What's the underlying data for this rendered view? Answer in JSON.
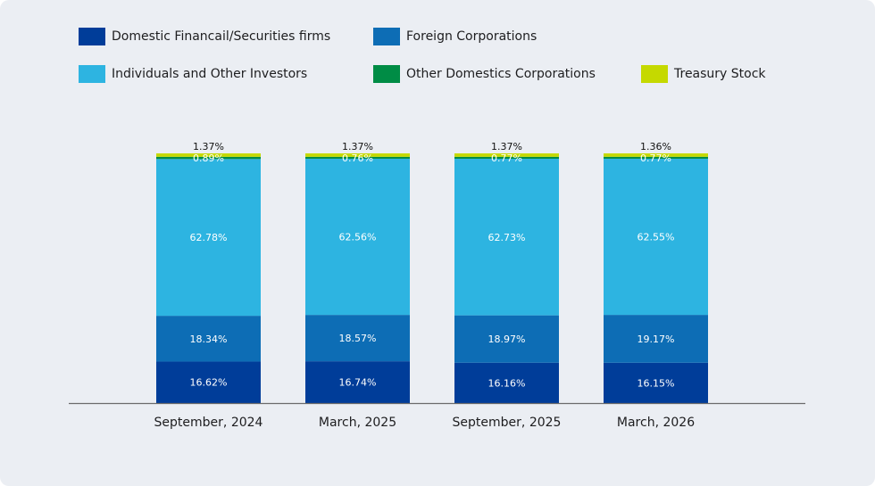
{
  "chart_data": {
    "type": "bar",
    "stacked": true,
    "percent": true,
    "categories": [
      "September, 2024",
      "March, 2025",
      "September, 2025",
      "March, 2026"
    ],
    "series": [
      {
        "name": "Domestic Financail/Securities firms",
        "color": "#003d99",
        "values": [
          16.62,
          16.74,
          16.16,
          16.15
        ],
        "labels": [
          "16.62%",
          "16.74%",
          "16.16%",
          "16.15%"
        ]
      },
      {
        "name": "Foreign Corporations",
        "color": "#0d6db5",
        "values": [
          18.34,
          18.57,
          18.97,
          19.17
        ],
        "labels": [
          "18.34%",
          "18.57%",
          "18.97%",
          "19.17%"
        ]
      },
      {
        "name": "Individuals and Other Investors",
        "color": "#2db4e1",
        "values": [
          62.78,
          62.56,
          62.73,
          62.55
        ],
        "labels": [
          "62.78%",
          "62.56%",
          "62.73%",
          "62.55%"
        ]
      },
      {
        "name": "Other Domestics Corporations",
        "color": "#008c45",
        "values": [
          0.89,
          0.76,
          0.77,
          0.77
        ],
        "labels": [
          "0.89%",
          "0.76%",
          "0.77%",
          "0.77%"
        ]
      },
      {
        "name": "Treasury Stock",
        "color": "#c5d900",
        "values": [
          1.37,
          1.37,
          1.37,
          1.36
        ],
        "labels": [
          "1.37%",
          "1.37%",
          "1.37%",
          "1.36%"
        ]
      }
    ],
    "ylim": [
      0,
      100
    ],
    "grid": false,
    "legend_position": "top-left"
  }
}
